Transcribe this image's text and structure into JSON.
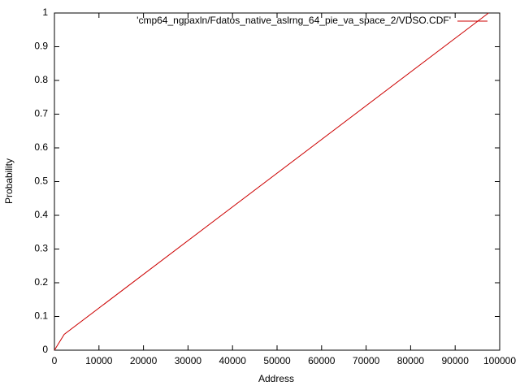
{
  "chart_data": {
    "type": "line",
    "xlabel": "Address",
    "ylabel": "Probability",
    "x": [
      0,
      2200,
      97500
    ],
    "series": [
      {
        "name": "'cmp64_ngpaxln/Fdatos_native_aslrng_64_pie_va_space_2/VDSO.CDF'",
        "color": "#cc0000",
        "values": [
          0,
          0.047,
          1
        ]
      }
    ],
    "xlim": [
      0,
      100000
    ],
    "xticks": [
      0,
      10000,
      20000,
      30000,
      40000,
      50000,
      60000,
      70000,
      80000,
      90000,
      100000
    ],
    "ylim": [
      0,
      1
    ],
    "yticks": [
      0,
      0.1,
      0.2,
      0.3,
      0.4,
      0.5,
      0.6,
      0.7,
      0.8,
      0.9,
      1
    ],
    "grid": false,
    "legend": "top-right"
  }
}
